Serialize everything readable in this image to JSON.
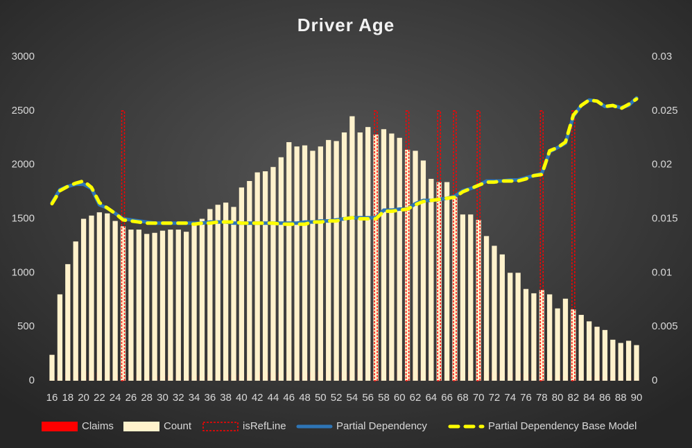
{
  "chart_data": {
    "type": "bar_line",
    "title": "Driver Age",
    "categories": [
      16,
      null,
      18,
      null,
      20,
      null,
      22,
      null,
      24,
      null,
      26,
      null,
      28,
      null,
      30,
      null,
      32,
      null,
      34,
      null,
      36,
      null,
      38,
      null,
      40,
      null,
      42,
      null,
      44,
      null,
      46,
      null,
      48,
      null,
      50,
      null,
      52,
      null,
      54,
      null,
      56,
      null,
      58,
      null,
      60,
      null,
      62,
      null,
      64,
      null,
      66,
      null,
      68,
      null,
      70,
      null,
      72,
      null,
      74,
      null,
      76,
      null,
      78,
      null,
      80,
      null,
      82,
      null,
      84,
      null,
      86,
      null,
      88,
      null,
      90
    ],
    "series": [
      {
        "name": "Claims",
        "type": "bar",
        "color": "#ff0000",
        "values": [
          10,
          50,
          70,
          80,
          90,
          80,
          75,
          70,
          60,
          50,
          50,
          50,
          45,
          45,
          50,
          50,
          45,
          50,
          50,
          50,
          60,
          60,
          60,
          55,
          60,
          60,
          80,
          80,
          75,
          75,
          80,
          75,
          75,
          80,
          85,
          85,
          85,
          80,
          95,
          110,
          85,
          90,
          100,
          100,
          95,
          95,
          100,
          95,
          95,
          90,
          90,
          95,
          85,
          85,
          80,
          80,
          75,
          70,
          70,
          70,
          65,
          60,
          55,
          50,
          50,
          45,
          50,
          45,
          40,
          45,
          40,
          35,
          30,
          30,
          25
        ]
      },
      {
        "name": "Count",
        "type": "bar",
        "color": "#fff2cc",
        "values": [
          240,
          800,
          1080,
          1290,
          1500,
          1530,
          1560,
          1550,
          1480,
          1430,
          1400,
          1400,
          1360,
          1370,
          1390,
          1400,
          1400,
          1380,
          1450,
          1500,
          1590,
          1630,
          1650,
          1610,
          1790,
          1850,
          1930,
          1940,
          1980,
          2070,
          2210,
          2170,
          2180,
          2130,
          2170,
          2230,
          2220,
          2300,
          2450,
          2300,
          2350,
          2280,
          2330,
          2290,
          2250,
          2140,
          2130,
          2040,
          1870,
          1840,
          1840,
          1700,
          1540,
          1540,
          1490,
          1340,
          1250,
          1170,
          1000,
          1000,
          850,
          810,
          840,
          800,
          670,
          760,
          660,
          610,
          550,
          500,
          470,
          380,
          350,
          370,
          330
        ]
      },
      {
        "name": "isRefLine",
        "type": "refbar",
        "color": "#ff0000",
        "values": [
          0,
          0,
          0,
          0,
          0,
          0,
          0,
          0,
          0,
          2500,
          0,
          0,
          0,
          0,
          0,
          0,
          0,
          0,
          0,
          0,
          0,
          0,
          0,
          0,
          0,
          0,
          0,
          0,
          0,
          0,
          0,
          0,
          0,
          0,
          0,
          0,
          0,
          0,
          0,
          0,
          0,
          2500,
          0,
          0,
          0,
          2500,
          0,
          0,
          0,
          2500,
          0,
          2500,
          0,
          0,
          2500,
          0,
          0,
          0,
          0,
          0,
          0,
          0,
          2500,
          0,
          0,
          0,
          2500,
          0,
          0,
          0,
          0,
          0,
          0,
          0,
          0
        ]
      },
      {
        "name": "Partial Dependency",
        "type": "line",
        "axis": "y2",
        "color": "#2e75b6",
        "values": [
          0.0165,
          0.0177,
          0.018,
          0.0182,
          0.0182,
          0.0178,
          0.0163,
          0.016,
          0.0155,
          0.015,
          0.0149,
          0.0148,
          0.0147,
          0.0146,
          0.0146,
          0.0146,
          0.0146,
          0.0146,
          0.0146,
          0.0146,
          0.0147,
          0.0147,
          0.0147,
          0.0146,
          0.0146,
          0.0146,
          0.0146,
          0.0146,
          0.0146,
          0.0146,
          0.0146,
          0.0146,
          0.0147,
          0.0147,
          0.0148,
          0.0148,
          0.0149,
          0.015,
          0.0151,
          0.0151,
          0.0151,
          0.0151,
          0.0158,
          0.0158,
          0.0159,
          0.0159,
          0.0164,
          0.0167,
          0.0167,
          0.0168,
          0.0169,
          0.0171,
          0.0176,
          0.0178,
          0.0181,
          0.0185,
          0.0185,
          0.0185,
          0.0186,
          0.0186,
          0.0188,
          0.019,
          0.0192,
          0.0212,
          0.0216,
          0.022,
          0.0245,
          0.0255,
          0.026,
          0.0259,
          0.0254,
          0.0255,
          0.0253,
          0.0255,
          0.0262
        ]
      },
      {
        "name": "Partial Dependency Base Model",
        "type": "dashline",
        "axis": "y2",
        "color": "#ffff00",
        "values": [
          0.0164,
          0.0176,
          0.018,
          0.0183,
          0.0185,
          0.0179,
          0.0165,
          0.016,
          0.0155,
          0.0149,
          0.0148,
          0.0147,
          0.0146,
          0.0146,
          0.0146,
          0.0146,
          0.0146,
          0.0146,
          0.0145,
          0.0146,
          0.0146,
          0.0147,
          0.0147,
          0.0147,
          0.0146,
          0.0146,
          0.0146,
          0.0146,
          0.0146,
          0.0145,
          0.0145,
          0.0145,
          0.0145,
          0.0147,
          0.0147,
          0.0148,
          0.0148,
          0.015,
          0.0151,
          0.015,
          0.015,
          0.015,
          0.0157,
          0.0157,
          0.0158,
          0.0159,
          0.0163,
          0.0166,
          0.0167,
          0.0168,
          0.0169,
          0.017,
          0.0175,
          0.0178,
          0.0181,
          0.0184,
          0.0184,
          0.0185,
          0.0185,
          0.0185,
          0.0187,
          0.019,
          0.0191,
          0.0213,
          0.0216,
          0.0221,
          0.0246,
          0.0255,
          0.026,
          0.0259,
          0.0254,
          0.0255,
          0.0252,
          0.0256,
          0.0261
        ]
      }
    ],
    "ylim": [
      0,
      3000
    ],
    "yticks": [
      0,
      500,
      1000,
      1500,
      2000,
      2500,
      3000
    ],
    "y2lim": [
      0,
      0.03
    ],
    "y2ticks": [
      0,
      0.005,
      0.01,
      0.015,
      0.02,
      0.025,
      0.03
    ],
    "legend": "bottom"
  }
}
